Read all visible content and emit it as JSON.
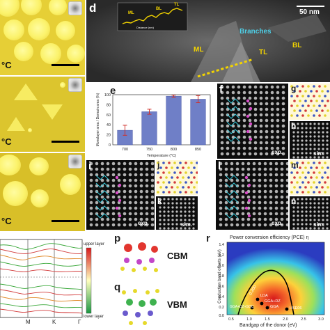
{
  "panel_a": {
    "temp_label": "°C"
  },
  "panel_b": {
    "temp_label": "°C"
  },
  "panel_c": {
    "temp_label": "°C"
  },
  "panel_d": {
    "letter": "d",
    "scale_label": "50 nm",
    "branches_label": "Branches",
    "ml_label": "ML",
    "bl_label": "BL",
    "tl_label": "TL",
    "inset": {
      "ylabel": "Intensity (a.u.)",
      "xlabel": "Distance (nm)",
      "ml": "ML",
      "bl": "BL",
      "tl": "TL",
      "xticks": [
        "0",
        "10",
        "20",
        "30",
        "40",
        "50",
        "60"
      ]
    }
  },
  "panel_e": {
    "letter": "e",
    "chart_data": {
      "type": "bar",
      "categories": [
        "700",
        "750",
        "800",
        "850"
      ],
      "values": [
        29,
        66,
        97,
        91
      ],
      "errors": [
        10,
        5,
        2,
        7
      ],
      "ylim": [
        0,
        100
      ],
      "yticks": [
        "0",
        "20",
        "40",
        "60",
        "80",
        "100"
      ],
      "xlabel": "Temperature (°C)",
      "ylabel": "Monolayer area / Domain area (%)",
      "bar_color": "#6f7fc7"
    }
  },
  "panel_f": {
    "letter": "f",
    "exp": "exp."
  },
  "panel_g": {
    "letter": "g"
  },
  "panel_h": {
    "letter": "h",
    "sim": "sim."
  },
  "panel_i": {
    "letter": "i",
    "exp": "exp."
  },
  "panel_j": {
    "letter": "j"
  },
  "panel_k": {
    "letter": "k",
    "sim": "sim."
  },
  "panel_l": {
    "letter": "l",
    "exp": "exp."
  },
  "panel_m": {
    "letter": "m"
  },
  "panel_n": {
    "letter": "n",
    "sim": "sim."
  },
  "panel_o": {
    "upper": "upper layer",
    "lower": "lower layer",
    "kpoints": [
      "M",
      "K",
      "Γ"
    ]
  },
  "panel_p": {
    "letter": "p",
    "label": "CBM"
  },
  "panel_q": {
    "letter": "q",
    "label": "VBM"
  },
  "panel_r": {
    "letter": "r",
    "title": "Power conversion efficiency (PCE) η",
    "xlabel": "Bandgap of the donor (eV)",
    "ylabel": "Conduction band offsets (eV)",
    "xticks": [
      "0.5",
      "1.0",
      "1.5",
      "2.0",
      "2.5",
      "3.0"
    ],
    "yticks": [
      "0.0",
      "0.2",
      "0.4",
      "0.6",
      "0.8",
      "1.0",
      "1.2",
      "1.4"
    ],
    "points": [
      "LDA",
      "GGA+DZ",
      "GGA+DZ+SOC",
      "GGA",
      "HSE06"
    ],
    "contour_labels": [
      "0.200"
    ]
  }
}
